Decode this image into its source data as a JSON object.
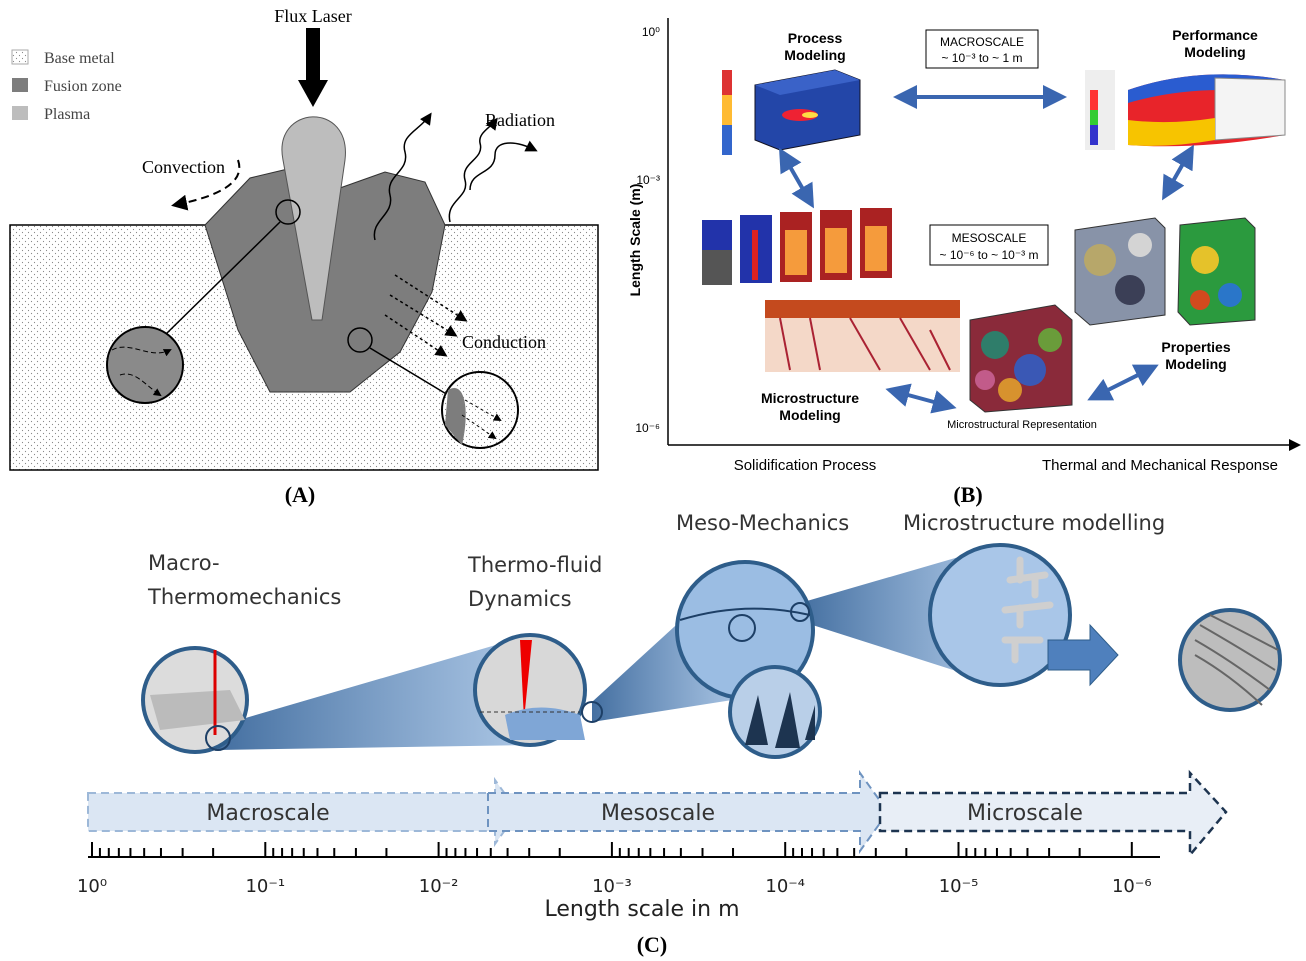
{
  "panel_a": {
    "legend": [
      "Base metal",
      "Fusion zone",
      "Plasma"
    ],
    "flux_laser": "Flux Laser",
    "radiation": "Radiation",
    "convection": "Convection",
    "conduction": "Conduction",
    "caption": "(A)"
  },
  "panel_b": {
    "y_axis_title": "Length Scale (m)",
    "y_ticks": [
      "10⁰",
      "10⁻³",
      "10⁻⁶"
    ],
    "process_modeling": [
      "Process",
      "Modeling"
    ],
    "performance_modeling": [
      "Performance",
      "Modeling"
    ],
    "macroscale": [
      "MACROSCALE",
      "~ 10⁻³ to ~ 1 m"
    ],
    "mesoscale": [
      "MESOSCALE",
      "~ 10⁻⁶ to ~ 10⁻³ m"
    ],
    "properties_modeling": [
      "Properties",
      "Modeling"
    ],
    "microstructure_modeling": [
      "Microstructure",
      "Modeling"
    ],
    "microstructural_representation": "Microstructural Representation",
    "x_labels": [
      "Solidification Process",
      "Thermal and Mechanical Response"
    ],
    "caption": "(B)"
  },
  "panel_c": {
    "stages": [
      [
        "Macro-",
        "Thermomechanics"
      ],
      [
        "Thermo-fluid",
        "Dynamics"
      ],
      [
        "Meso-Mechanics"
      ],
      [
        "Microstructure modelling"
      ]
    ],
    "scales": [
      "Macroscale",
      "Mesoscale",
      "Microscale"
    ],
    "ticks": [
      "10⁰",
      "10⁻¹",
      "10⁻²",
      "10⁻³",
      "10⁻⁴",
      "10⁻⁵",
      "10⁻⁶"
    ],
    "axis_title": "Length scale in m",
    "caption": "(C)"
  }
}
